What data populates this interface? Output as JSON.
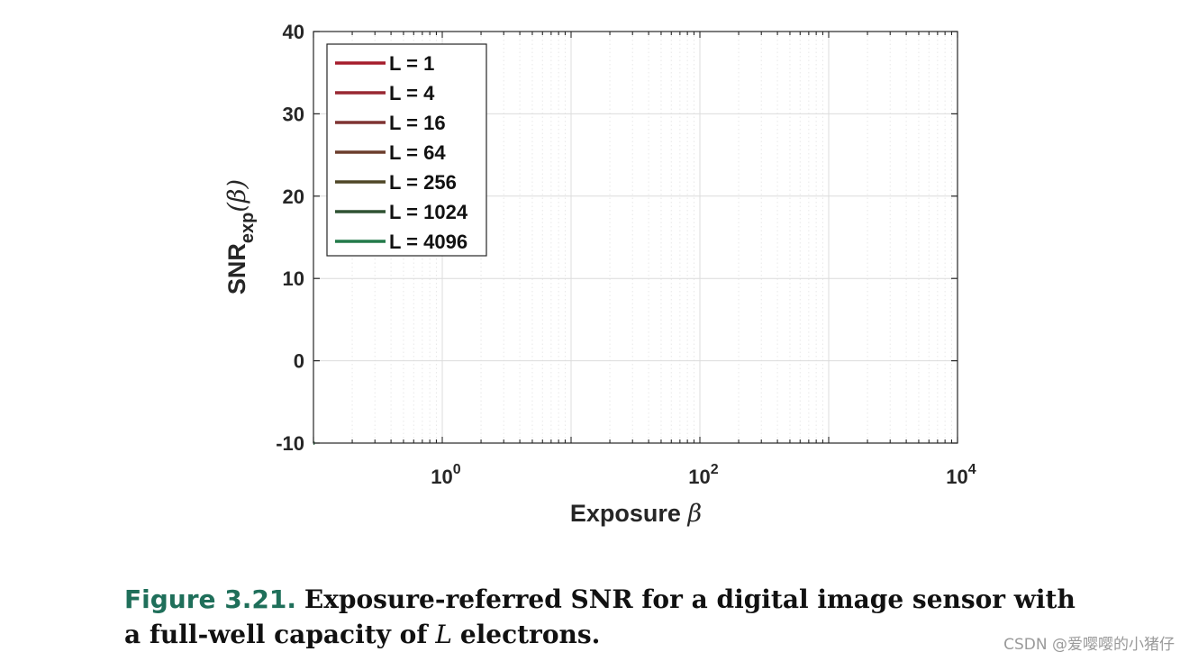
{
  "chart_data": {
    "type": "line",
    "title": "",
    "xlabel": "Exposure",
    "xlabel_symbol": "β",
    "ylabel_main": "SNR",
    "ylabel_sub": "exp",
    "ylabel_arg": "(β)",
    "xscale": "log",
    "xlim": [
      0.1,
      10000
    ],
    "ylim": [
      -10,
      40
    ],
    "xticks": [
      {
        "value": 1,
        "base": "10",
        "exp": "0"
      },
      {
        "value": 100,
        "base": "10",
        "exp": "2"
      },
      {
        "value": 10000,
        "base": "10",
        "exp": "4"
      }
    ],
    "yticks": [
      -10,
      0,
      10,
      20,
      30,
      40
    ],
    "grid": true,
    "minor_grid": true,
    "legend_position": "top-left",
    "series": [
      {
        "name": "L = 1",
        "L": 1,
        "color": "#a51c2b"
      },
      {
        "name": "L = 4",
        "L": 4,
        "color": "#982731"
      },
      {
        "name": "L = 16",
        "L": 16,
        "color": "#7f3332"
      },
      {
        "name": "L = 64",
        "L": 64,
        "color": "#6b3d2c"
      },
      {
        "name": "L = 256",
        "L": 256,
        "color": "#4f4626"
      },
      {
        "name": "L = 1024",
        "L": 1024,
        "color": "#2f5232"
      },
      {
        "name": "L = 4096",
        "L": 4096,
        "color": "#237a4a"
      }
    ]
  },
  "caption": {
    "label": "Figure 3.21.",
    "text_before": "Exposure-referred SNR for a digital image sensor with a full-well capacity of",
    "symbol": "L",
    "text_after": "electrons."
  },
  "watermark": "CSDN @爱嘤嘤的小猪仔"
}
